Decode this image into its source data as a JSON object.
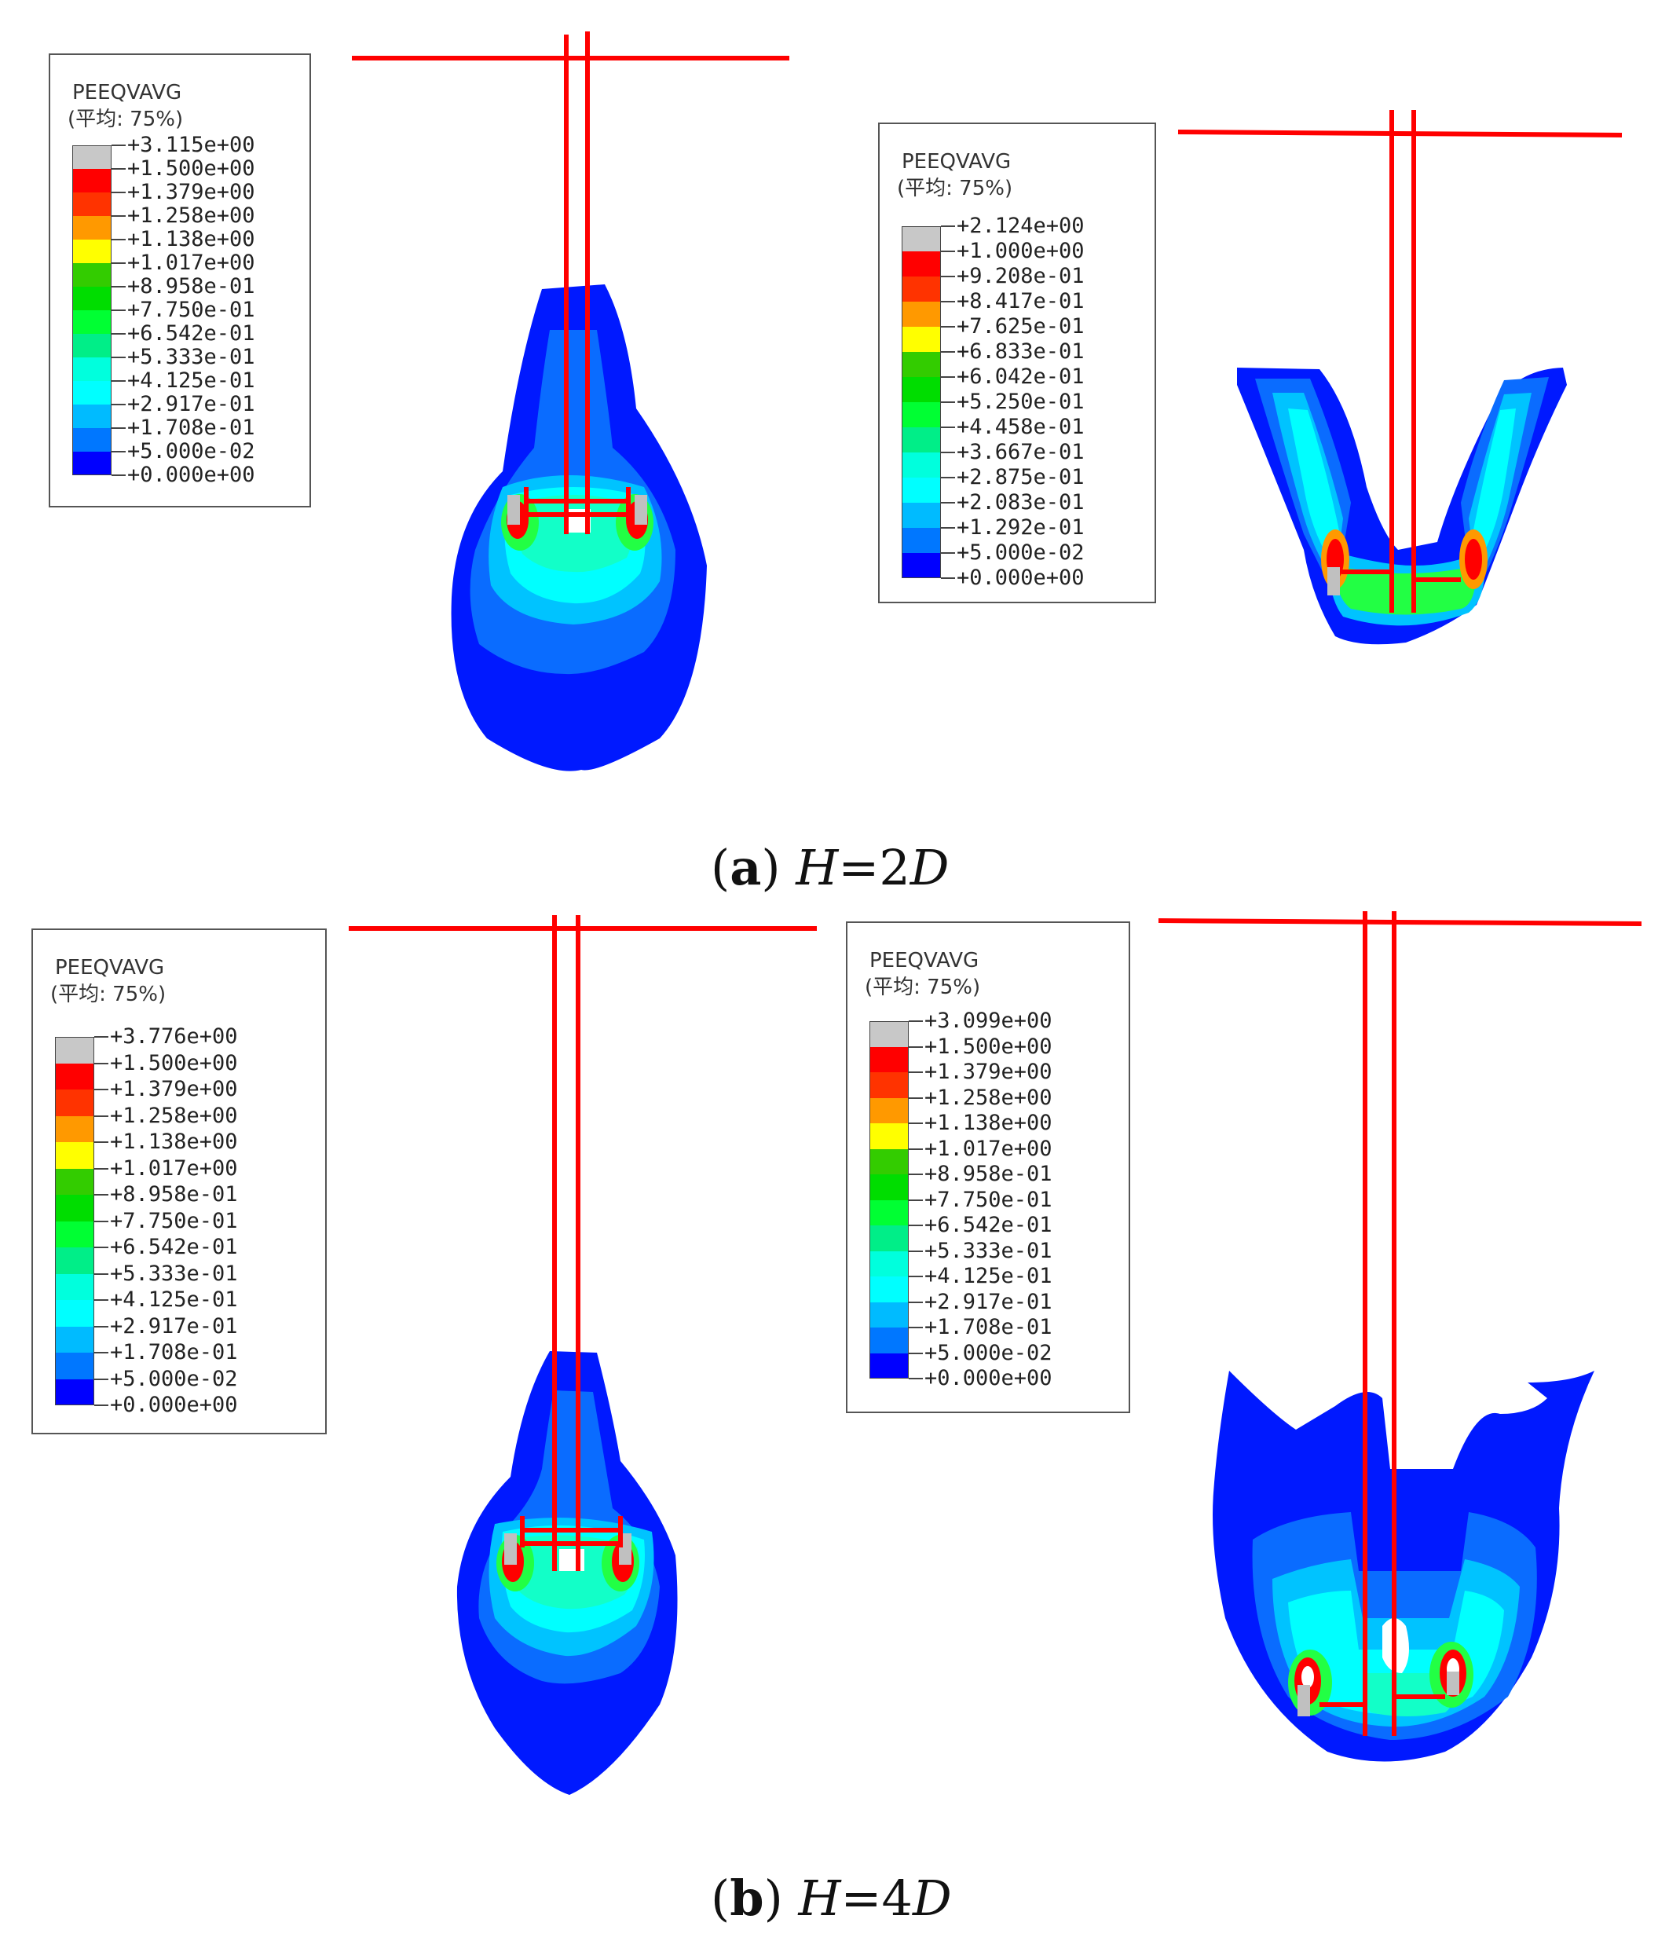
{
  "colors": {
    "scale": [
      "#c8c8c8",
      "#ff0000",
      "#ff3300",
      "#ff9900",
      "#ffff00",
      "#33cc00",
      "#00dd00",
      "#00ff33",
      "#00ee88",
      "#00ffdd",
      "#00ffff",
      "#00bbff",
      "#0077ff",
      "#0000ff",
      "#ffffff"
    ],
    "contour": {
      "deep": "#0019ff",
      "mid": "#0a6cff",
      "light": "#00c3ff",
      "cyan": "#00ffff",
      "teal": "#12ffc8",
      "green": "#22ff44",
      "yellow": "#ffff00",
      "orange": "#ff9900",
      "red": "#ff0000",
      "grey": "#c0c0c0"
    },
    "pile": "#ff0000"
  },
  "panels": [
    {
      "legend": {
        "title": "PEEQVAVG",
        "subtitle": "(平均: 75%)",
        "values": [
          "+3.115e+00",
          "+1.500e+00",
          "+1.379e+00",
          "+1.258e+00",
          "+1.138e+00",
          "+1.017e+00",
          "+8.958e-01",
          "+7.750e-01",
          "+6.542e-01",
          "+5.333e-01",
          "+4.125e-01",
          "+2.917e-01",
          "+1.708e-01",
          "+5.000e-02",
          "+0.000e+00"
        ]
      }
    },
    {
      "legend": {
        "title": "PEEQVAVG",
        "subtitle": "(平均: 75%)",
        "values": [
          "+2.124e+00",
          "+1.000e+00",
          "+9.208e-01",
          "+8.417e-01",
          "+7.625e-01",
          "+6.833e-01",
          "+6.042e-01",
          "+5.250e-01",
          "+4.458e-01",
          "+3.667e-01",
          "+2.875e-01",
          "+2.083e-01",
          "+1.292e-01",
          "+5.000e-02",
          "+0.000e+00"
        ]
      }
    },
    {
      "legend": {
        "title": "PEEQVAVG",
        "subtitle": "(平均: 75%)",
        "values": [
          "+3.776e+00",
          "+1.500e+00",
          "+1.379e+00",
          "+1.258e+00",
          "+1.138e+00",
          "+1.017e+00",
          "+8.958e-01",
          "+7.750e-01",
          "+6.542e-01",
          "+5.333e-01",
          "+4.125e-01",
          "+2.917e-01",
          "+1.708e-01",
          "+5.000e-02",
          "+0.000e+00"
        ]
      }
    },
    {
      "legend": {
        "title": "PEEQVAVG",
        "subtitle": "(平均: 75%)",
        "values": [
          "+3.099e+00",
          "+1.500e+00",
          "+1.379e+00",
          "+1.258e+00",
          "+1.138e+00",
          "+1.017e+00",
          "+8.958e-01",
          "+7.750e-01",
          "+6.542e-01",
          "+5.333e-01",
          "+4.125e-01",
          "+2.917e-01",
          "+1.708e-01",
          "+5.000e-02",
          "+0.000e+00"
        ]
      }
    }
  ],
  "captions": {
    "a": {
      "label": "a",
      "h": "H",
      "eq": "=2",
      "d": "D"
    },
    "b": {
      "label": "b",
      "h": "H",
      "eq": "=4",
      "d": "D"
    }
  }
}
